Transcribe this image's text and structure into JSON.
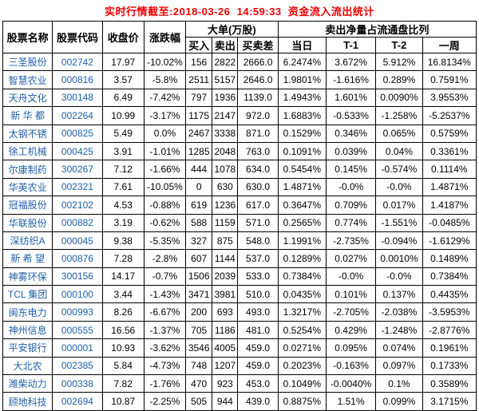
{
  "title": "实时行情截至:2018-03-26  14:59:33  资金流入流出统计",
  "colors": {
    "title_text": "#ee0000",
    "stock_name_code": "#2060a8",
    "data_text": "#000000",
    "grid_border": "#000000",
    "background": "#ffffff"
  },
  "table": {
    "headers": {
      "name": "股票名称",
      "code": "股票代码",
      "close": "收盘价",
      "change": "涨跌幅",
      "big_order_group": "大单(万股)",
      "buy": "买入",
      "sell": "卖出",
      "diff": "买卖差",
      "net_sell_group": "卖出净量占流通盘比列",
      "today": "当日",
      "t1": "T-1",
      "t2": "T-2",
      "week": "一周"
    },
    "rows": [
      {
        "name": "三圣股份",
        "code": "002742",
        "close": "17.97",
        "change": "-10.02%",
        "buy": "156",
        "sell": "2822",
        "diff": "2666.0",
        "today": "6.2474%",
        "t1": "3.672%",
        "t2": "5.912%",
        "week": "16.8134%"
      },
      {
        "name": "智慧农业",
        "code": "000816",
        "close": "3.57",
        "change": "-5.8%",
        "buy": "2511",
        "sell": "5157",
        "diff": "2646.0",
        "today": "1.9801%",
        "t1": "-1.616%",
        "t2": "0.289%",
        "week": "0.7591%"
      },
      {
        "name": "天舟文化",
        "code": "300148",
        "close": "6.49",
        "change": "-7.42%",
        "buy": "797",
        "sell": "1936",
        "diff": "1139.0",
        "today": "1.4943%",
        "t1": "1.601%",
        "t2": "0.0090%",
        "week": "3.9553%"
      },
      {
        "name": "新 华 都",
        "code": "002264",
        "close": "10.99",
        "change": "-3.17%",
        "buy": "1175",
        "sell": "2147",
        "diff": "972.0",
        "today": "1.6883%",
        "t1": "-0.533%",
        "t2": "-1.258%",
        "week": "-5.2537%"
      },
      {
        "name": "太钢不锈",
        "code": "000825",
        "close": "5.49",
        "change": "0.0%",
        "buy": "2467",
        "sell": "3338",
        "diff": "871.0",
        "today": "0.1529%",
        "t1": "0.346%",
        "t2": "0.065%",
        "week": "0.5759%"
      },
      {
        "name": "徐工机械",
        "code": "000425",
        "close": "3.91",
        "change": "-1.01%",
        "buy": "1285",
        "sell": "2048",
        "diff": "763.0",
        "today": "0.1091%",
        "t1": "0.039%",
        "t2": "0.04%",
        "week": "0.3361%"
      },
      {
        "name": "尔康制药",
        "code": "300267",
        "close": "7.12",
        "change": "-1.66%",
        "buy": "444",
        "sell": "1078",
        "diff": "634.0",
        "today": "0.5454%",
        "t1": "0.145%",
        "t2": "-0.574%",
        "week": "0.1114%"
      },
      {
        "name": "华英农业",
        "code": "002321",
        "close": "7.61",
        "change": "-10.05%",
        "buy": "0",
        "sell": "630",
        "diff": "630.0",
        "today": "1.4871%",
        "t1": "-0.0%",
        "t2": "-0.0%",
        "week": "1.4871%"
      },
      {
        "name": "冠福股份",
        "code": "002102",
        "close": "4.53",
        "change": "-0.88%",
        "buy": "619",
        "sell": "1236",
        "diff": "617.0",
        "today": "0.3647%",
        "t1": "0.709%",
        "t2": "0.017%",
        "week": "1.4187%"
      },
      {
        "name": "华联股份",
        "code": "000882",
        "close": "3.19",
        "change": "-0.62%",
        "buy": "588",
        "sell": "1159",
        "diff": "571.0",
        "today": "0.2565%",
        "t1": "0.774%",
        "t2": "-1.551%",
        "week": "-0.0485%"
      },
      {
        "name": "深纺织A",
        "code": "000045",
        "close": "9.38",
        "change": "-5.35%",
        "buy": "327",
        "sell": "875",
        "diff": "548.0",
        "today": "1.1991%",
        "t1": "-2.735%",
        "t2": "-0.094%",
        "week": "-1.6129%"
      },
      {
        "name": "新 希 望",
        "code": "000876",
        "close": "7.28",
        "change": "-2.8%",
        "buy": "607",
        "sell": "1144",
        "diff": "537.0",
        "today": "0.1289%",
        "t1": "0.027%",
        "t2": "0.0010%",
        "week": "0.1489%"
      },
      {
        "name": "神雾环保",
        "code": "300156",
        "close": "14.17",
        "change": "-0.7%",
        "buy": "1506",
        "sell": "2039",
        "diff": "533.0",
        "today": "0.7384%",
        "t1": "-0.0%",
        "t2": "-0.0%",
        "week": "0.7384%"
      },
      {
        "name": "TCL 集团",
        "code": "000100",
        "close": "3.44",
        "change": "-1.43%",
        "buy": "3471",
        "sell": "3981",
        "diff": "510.0",
        "today": "0.0435%",
        "t1": "0.101%",
        "t2": "0.137%",
        "week": "0.4435%"
      },
      {
        "name": "闽东电力",
        "code": "000993",
        "close": "8.26",
        "change": "-6.67%",
        "buy": "200",
        "sell": "693",
        "diff": "493.0",
        "today": "1.3217%",
        "t1": "-2.705%",
        "t2": "-2.038%",
        "week": "-3.5953%"
      },
      {
        "name": "神州信息",
        "code": "000555",
        "close": "16.56",
        "change": "-1.37%",
        "buy": "705",
        "sell": "1186",
        "diff": "481.0",
        "today": "0.5254%",
        "t1": "0.429%",
        "t2": "-1.248%",
        "week": "-2.8776%"
      },
      {
        "name": "平安银行",
        "code": "000001",
        "close": "10.93",
        "change": "-3.62%",
        "buy": "3546",
        "sell": "4005",
        "diff": "459.0",
        "today": "0.0271%",
        "t1": "0.095%",
        "t2": "0.074%",
        "week": "0.1961%"
      },
      {
        "name": "大北农",
        "code": "002385",
        "close": "5.84",
        "change": "-4.73%",
        "buy": "748",
        "sell": "1207",
        "diff": "459.0",
        "today": "0.2023%",
        "t1": "-0.163%",
        "t2": "0.097%",
        "week": "0.1733%"
      },
      {
        "name": "潍柴动力",
        "code": "000338",
        "close": "7.82",
        "change": "-1.76%",
        "buy": "470",
        "sell": "923",
        "diff": "453.0",
        "today": "0.1049%",
        "t1": "-0.0040%",
        "t2": "0.1%",
        "week": "0.3589%"
      },
      {
        "name": "顾地科技",
        "code": "002694",
        "close": "10.87",
        "change": "-2.25%",
        "buy": "505",
        "sell": "944",
        "diff": "439.0",
        "today": "0.8875%",
        "t1": "1.51%",
        "t2": "0.099%",
        "week": "3.1715%"
      }
    ]
  }
}
